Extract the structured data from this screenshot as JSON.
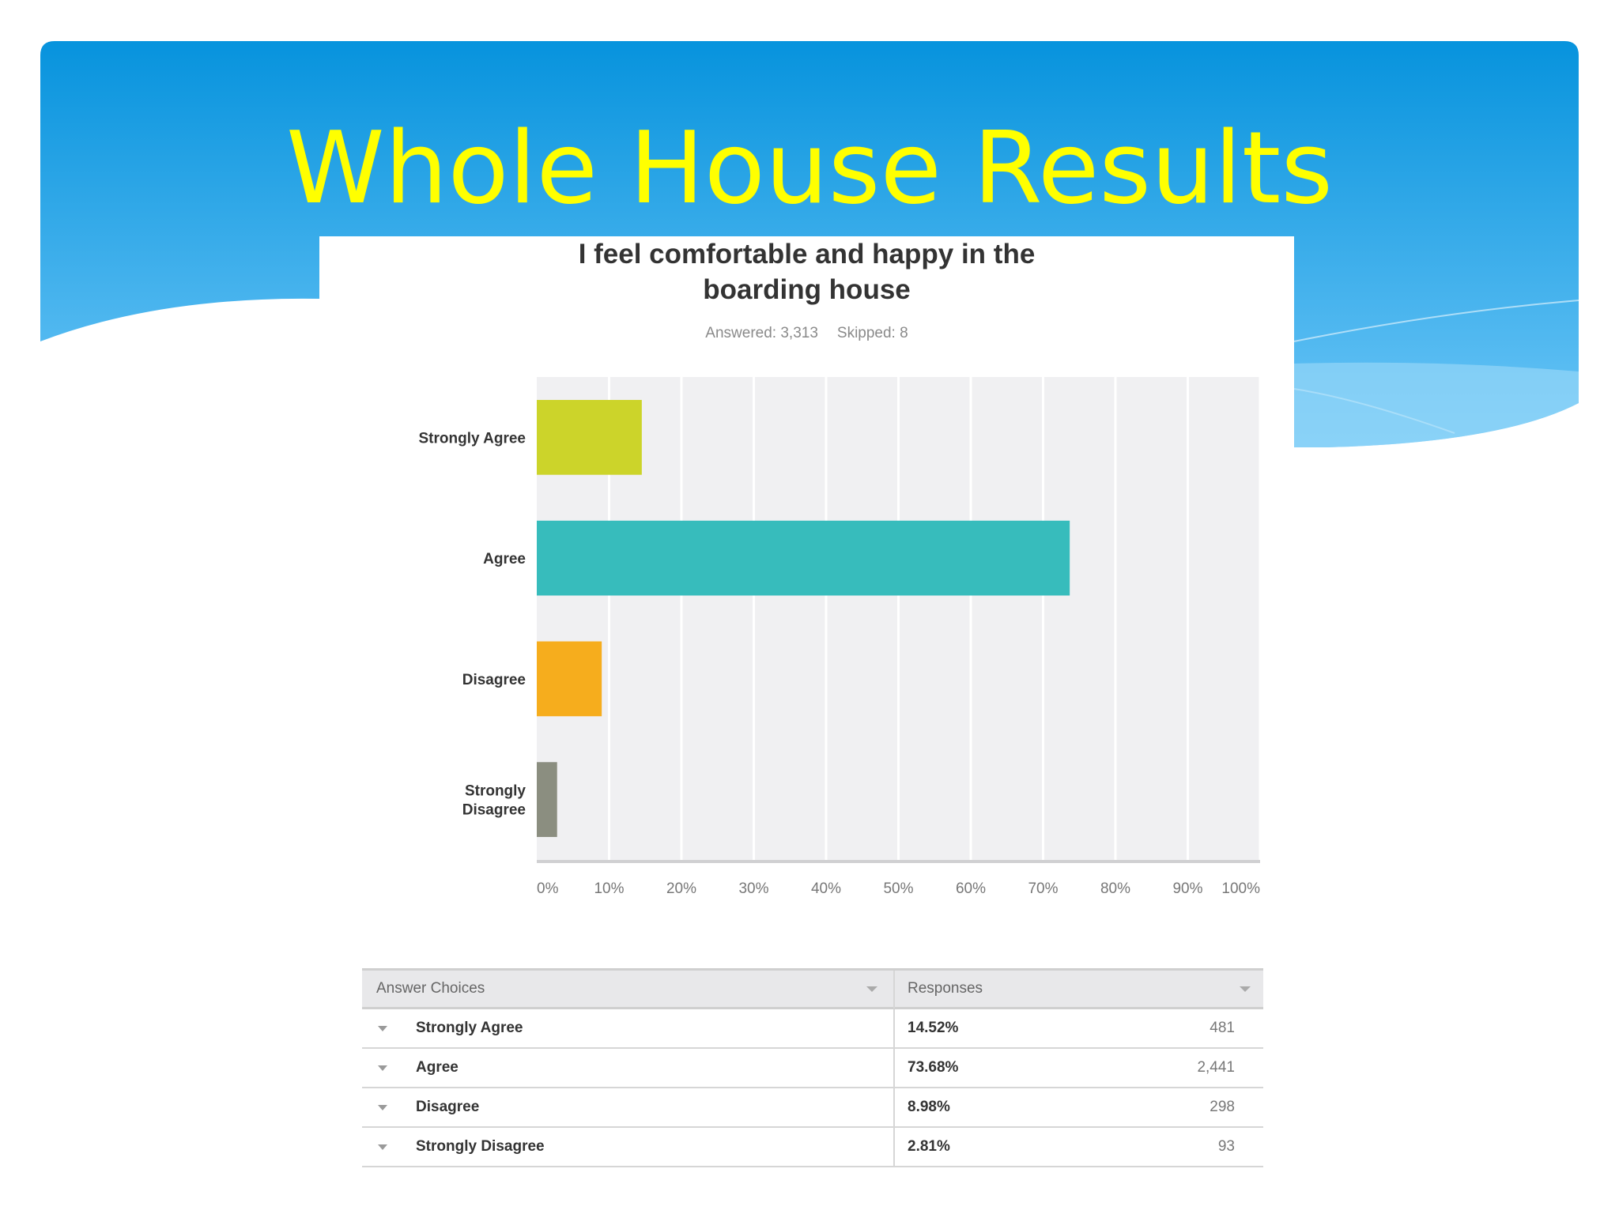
{
  "slide": {
    "title": "Whole House Results",
    "colors": {
      "title": "#ffff00",
      "header_top": "#0793dd",
      "header_bottom": "#6cc6f7"
    }
  },
  "chart_data": {
    "type": "bar",
    "orientation": "horizontal",
    "title": "I feel comfortable and happy in the boarding house",
    "title_lines": [
      "I feel comfortable and happy in the",
      "boarding house"
    ],
    "subtitle": {
      "answered": "Answered: 3,313",
      "skipped": "Skipped: 8"
    },
    "categories": [
      "Strongly Agree",
      "Agree",
      "Disagree",
      "Strongly Disagree"
    ],
    "category_lines": [
      [
        "Strongly Agree"
      ],
      [
        "Agree"
      ],
      [
        "Disagree"
      ],
      [
        "Strongly",
        "Disagree"
      ]
    ],
    "values": [
      14.52,
      73.68,
      8.98,
      2.81
    ],
    "colors": [
      "#ccd42a",
      "#37bcbc",
      "#f6ad1d",
      "#8b8e80"
    ],
    "xlim": [
      0,
      100
    ],
    "xticks": [
      0,
      10,
      20,
      30,
      40,
      50,
      60,
      70,
      80,
      90,
      100
    ],
    "xtick_labels": [
      "0%",
      "10%",
      "20%",
      "30%",
      "40%",
      "50%",
      "60%",
      "70%",
      "80%",
      "90%",
      "100%"
    ],
    "grid": true
  },
  "table": {
    "headers": {
      "choice": "Answer Choices",
      "responses": "Responses"
    },
    "rows": [
      {
        "choice": "Strongly Agree",
        "percent": "14.52%",
        "count": "481"
      },
      {
        "choice": "Agree",
        "percent": "73.68%",
        "count": "2,441"
      },
      {
        "choice": "Disagree",
        "percent": "8.98%",
        "count": "298"
      },
      {
        "choice": "Strongly Disagree",
        "percent": "2.81%",
        "count": "93"
      }
    ]
  }
}
